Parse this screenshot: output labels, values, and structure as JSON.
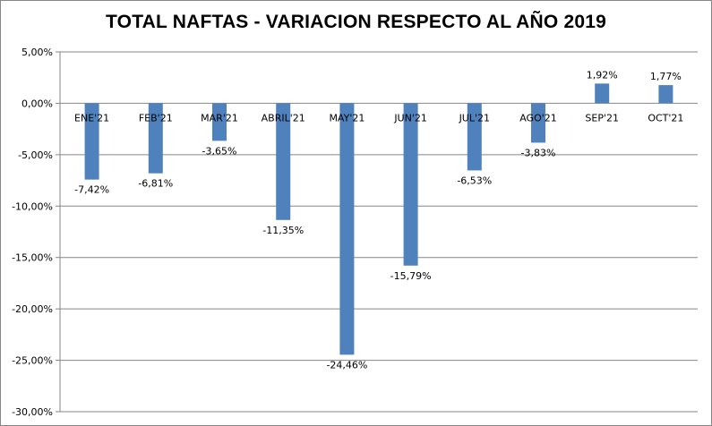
{
  "chart_data": {
    "type": "bar",
    "title": "TOTAL NAFTAS - VARIACION RESPECTO AL AÑO 2019",
    "xlabel": "",
    "ylabel": "",
    "categories": [
      "ENE'21",
      "FEB'21",
      "MAR'21",
      "ABRIL'21",
      "MAY'21",
      "JUN'21",
      "JUL'21",
      "AGO'21",
      "SEP'21",
      "OCT'21"
    ],
    "values": [
      -7.42,
      -6.81,
      -3.65,
      -11.35,
      -24.46,
      -15.79,
      -6.53,
      -3.83,
      1.92,
      1.77
    ],
    "data_labels": [
      "-7,42%",
      "-6,81%",
      "-3,65%",
      "-11,35%",
      "-24,46%",
      "-15,79%",
      "-6,53%",
      "-3,83%",
      "1,92%",
      "1,77%"
    ],
    "ylim": [
      -30,
      5
    ],
    "y_ticks": [
      5,
      0,
      -5,
      -10,
      -15,
      -20,
      -25,
      -30
    ],
    "y_tick_labels": [
      "5,00%",
      "0,00%",
      "-5,00%",
      "-10,00%",
      "-15,00%",
      "-20,00%",
      "-25,00%",
      "-30,00%"
    ],
    "grid": true,
    "legend": "none",
    "bar_color": "#4F81BD",
    "grid_color": "#868686"
  }
}
